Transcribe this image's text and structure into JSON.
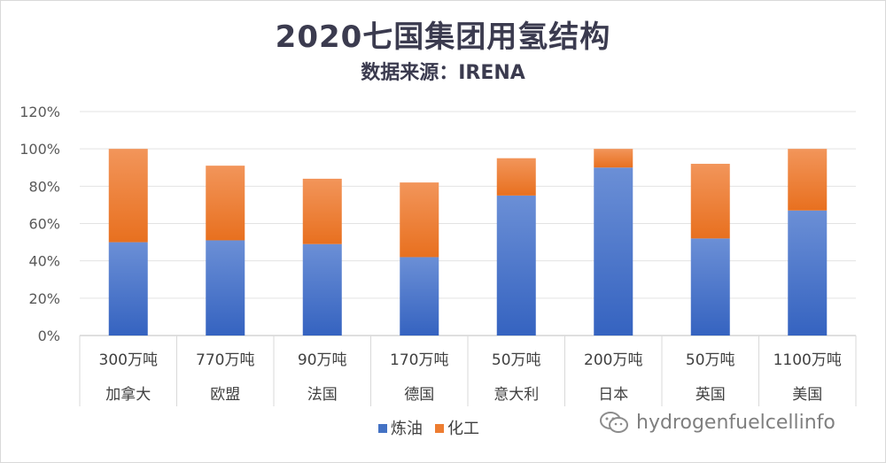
{
  "chart_data": {
    "type": "bar",
    "stacked": true,
    "title": "2020七国集团用氢结构",
    "subtitle": "数据来源：IRENA",
    "categories": [
      {
        "volume": "300万吨",
        "country": "加拿大"
      },
      {
        "volume": "770万吨",
        "country": "欧盟"
      },
      {
        "volume": "90万吨",
        "country": "法国"
      },
      {
        "volume": "170万吨",
        "country": "德国"
      },
      {
        "volume": "50万吨",
        "country": "意大利"
      },
      {
        "volume": "200万吨",
        "country": "日本"
      },
      {
        "volume": "50万吨",
        "country": "英国"
      },
      {
        "volume": "1100万吨",
        "country": "美国"
      }
    ],
    "series": [
      {
        "name": "炼油",
        "color": "#4472c4",
        "values": [
          50,
          51,
          49,
          42,
          75,
          90,
          52,
          67
        ]
      },
      {
        "name": "化工",
        "color": "#ed7d31",
        "values": [
          50,
          40,
          35,
          40,
          20,
          10,
          40,
          33
        ]
      }
    ],
    "ylim": [
      0,
      120
    ],
    "yticks": [
      "0%",
      "20%",
      "40%",
      "60%",
      "80%",
      "100%",
      "120%"
    ],
    "grid": true,
    "legend": "bottom"
  },
  "watermark": "hydrogenfuelcellinfo"
}
